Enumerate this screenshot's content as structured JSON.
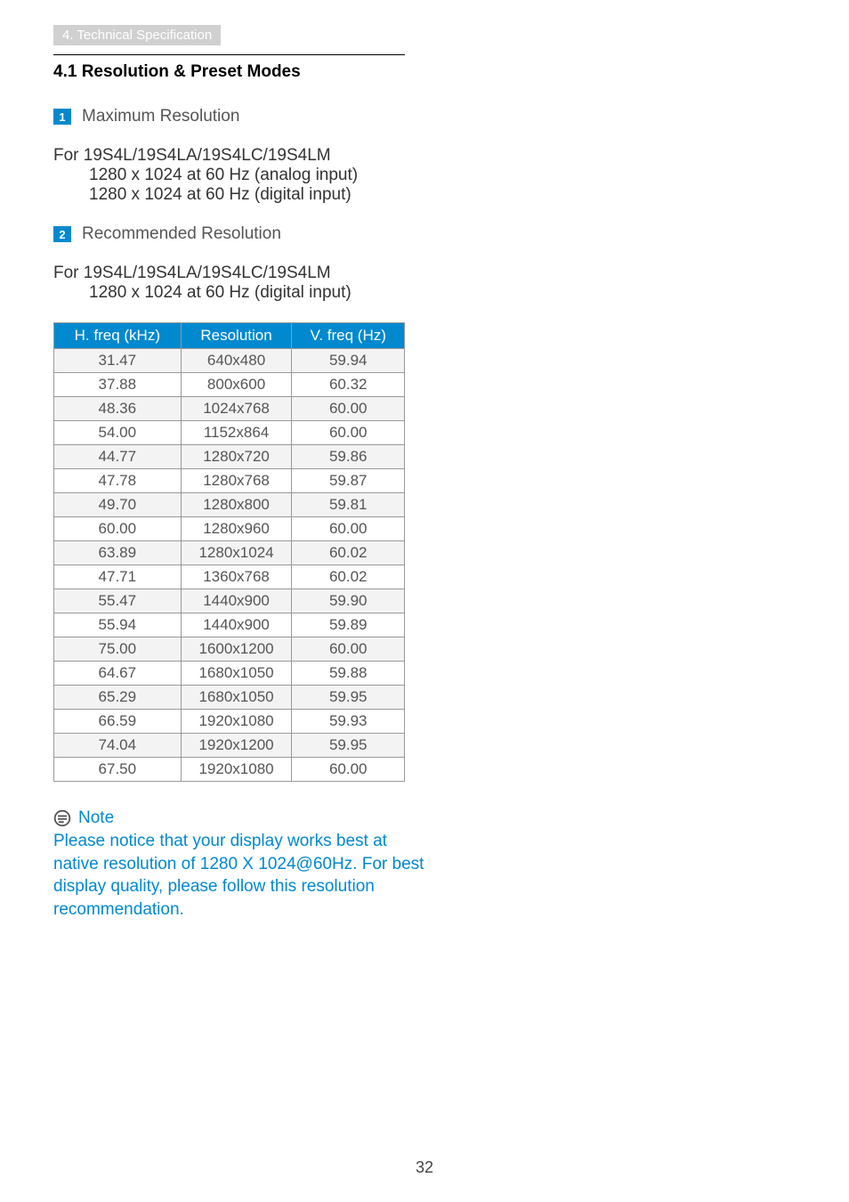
{
  "breadcrumb": "4. Technical Specification",
  "section_title": "4.1 Resolution & Preset Modes",
  "items": [
    {
      "num": "1",
      "label": "Maximum Resolution",
      "for_label": "For",
      "models": "19S4L/19S4LA/19S4LC/19S4LM",
      "lines": [
        "1280 x 1024 at 60 Hz (analog input)",
        "1280 x 1024 at 60 Hz (digital input)"
      ]
    },
    {
      "num": "2",
      "label": "Recommended Resolution",
      "for_label": "For",
      "models": "19S4L/19S4LA/19S4LC/19S4LM",
      "lines": [
        "1280 x 1024 at 60 Hz (digital input)"
      ]
    }
  ],
  "table": {
    "type": "table",
    "columns": [
      "H. freq (kHz)",
      "Resolution",
      "V. freq (Hz)"
    ],
    "col_widths": [
      "33%",
      "34%",
      "33%"
    ],
    "header_bg": "#0089cf",
    "header_fg": "#ffffff",
    "row_odd_bg": "#f3f3f3",
    "row_even_bg": "#ffffff",
    "border_color": "#999999",
    "cell_fg": "#555555",
    "rows": [
      [
        "31.47",
        "640x480",
        "59.94"
      ],
      [
        "37.88",
        "800x600",
        "60.32"
      ],
      [
        "48.36",
        "1024x768",
        "60.00"
      ],
      [
        "54.00",
        "1152x864",
        "60.00"
      ],
      [
        "44.77",
        "1280x720",
        "59.86"
      ],
      [
        "47.78",
        "1280x768",
        "59.87"
      ],
      [
        "49.70",
        "1280x800",
        "59.81"
      ],
      [
        "60.00",
        "1280x960",
        "60.00"
      ],
      [
        "63.89",
        "1280x1024",
        "60.02"
      ],
      [
        "47.71",
        "1360x768",
        "60.02"
      ],
      [
        "55.47",
        "1440x900",
        "59.90"
      ],
      [
        "55.94",
        "1440x900",
        "59.89"
      ],
      [
        "75.00",
        "1600x1200",
        "60.00"
      ],
      [
        "64.67",
        "1680x1050",
        "59.88"
      ],
      [
        "65.29",
        "1680x1050",
        "59.95"
      ],
      [
        "66.59",
        "1920x1080",
        "59.93"
      ],
      [
        "74.04",
        "1920x1200",
        "59.95"
      ],
      [
        "67.50",
        "1920x1080",
        "60.00"
      ]
    ]
  },
  "note": {
    "title": "Note",
    "body": "Please notice that your display works best at native resolution of 1280 X 1024@60Hz. For best display quality, please follow this resolution recommendation.",
    "color": "#0089cf",
    "icon_fg": "#555555"
  },
  "page_number": "32"
}
